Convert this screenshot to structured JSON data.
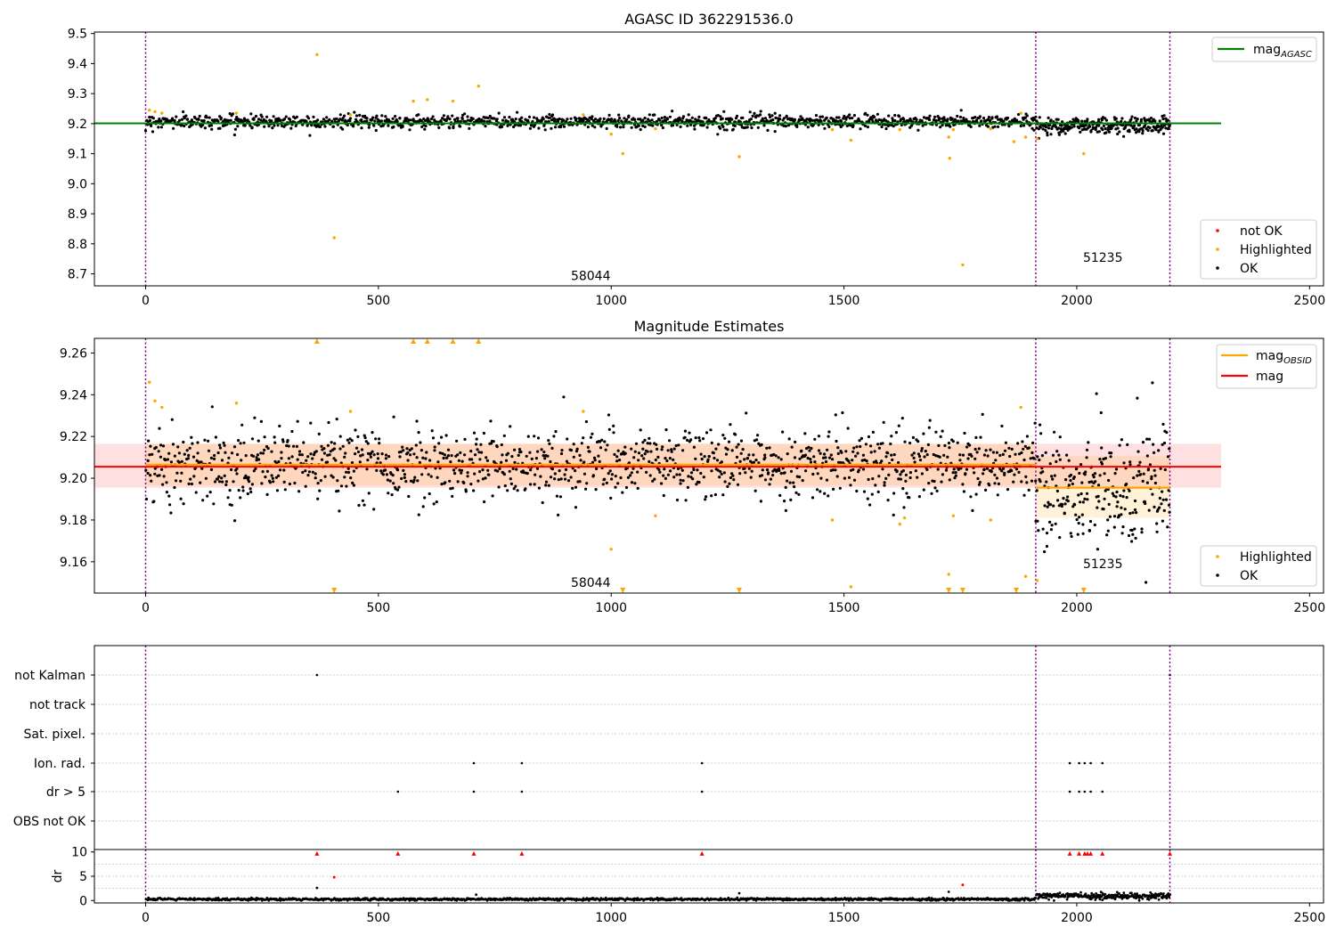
{
  "colors": {
    "ok": "#000000",
    "highlighted": "#ffa500",
    "not_ok": "#ff0000",
    "mag_agasc": "#008000",
    "mag_obsid": "#ffa500",
    "mag": "#ff0000",
    "obsid_boundary": "#800080"
  },
  "chart_data": [
    {
      "type": "scatter",
      "title": "AGASC ID 362291536.0",
      "xlim": [
        -110,
        2530
      ],
      "ylim": [
        8.66,
        9.505
      ],
      "xticks": [
        "0",
        "500",
        "1000",
        "1500",
        "2000",
        "2500"
      ],
      "yticks": [
        "8.7",
        "8.8",
        "8.9",
        "9.0",
        "9.1",
        "9.2",
        "9.3",
        "9.4",
        "9.5"
      ],
      "legend_lines": [
        {
          "label_main": "mag",
          "label_sub": "AGASC",
          "color": "#008000"
        }
      ],
      "legend_points": [
        {
          "label": "not OK",
          "color": "#ff0000"
        },
        {
          "label": "Highlighted",
          "color": "#ffa500"
        },
        {
          "label": "OK",
          "color": "#000000"
        }
      ],
      "obsid_boundaries": [
        0,
        1912,
        2200
      ],
      "annotations": [
        {
          "text": "58044",
          "x": 956,
          "y": 8.68
        },
        {
          "text": "51235",
          "x": 2056,
          "y": 8.74
        }
      ],
      "mag_agasc": 9.201,
      "ok_segments": [
        {
          "x0": 0,
          "x1": 1912,
          "mean": 9.207,
          "spread": 0.011
        },
        {
          "x0": 1912,
          "x1": 2200,
          "mean": 9.195,
          "spread": 0.014
        }
      ],
      "highlighted": [
        [
          8,
          9.245
        ],
        [
          20,
          9.24
        ],
        [
          35,
          9.235
        ],
        [
          195,
          9.235
        ],
        [
          368,
          9.43
        ],
        [
          405,
          8.82
        ],
        [
          440,
          9.23
        ],
        [
          575,
          9.275
        ],
        [
          605,
          9.28
        ],
        [
          660,
          9.275
        ],
        [
          715,
          9.325
        ],
        [
          940,
          9.23
        ],
        [
          1000,
          9.165
        ],
        [
          1025,
          9.1
        ],
        [
          1095,
          9.183
        ],
        [
          1275,
          9.09
        ],
        [
          1475,
          9.18
        ],
        [
          1515,
          9.145
        ],
        [
          1620,
          9.18
        ],
        [
          1725,
          9.155
        ],
        [
          1727,
          9.085
        ],
        [
          1735,
          9.18
        ],
        [
          1755,
          8.73
        ],
        [
          1815,
          9.183
        ],
        [
          1865,
          9.14
        ],
        [
          1880,
          9.235
        ],
        [
          1890,
          9.155
        ],
        [
          1915,
          9.15
        ],
        [
          2015,
          9.1
        ]
      ]
    },
    {
      "type": "scatter",
      "title": "Magnitude Estimates",
      "xlim": [
        -110,
        2530
      ],
      "ylim": [
        9.145,
        9.267
      ],
      "xticks": [
        "0",
        "500",
        "1000",
        "1500",
        "2000",
        "2500"
      ],
      "yticks": [
        "9.16",
        "9.18",
        "9.20",
        "9.22",
        "9.24",
        "9.26"
      ],
      "legend_lines": [
        {
          "label_main": "mag",
          "label_sub": "OBSID",
          "color": "#ffa500"
        },
        {
          "label_main": "mag",
          "label_sub": "",
          "color": "#ff0000"
        }
      ],
      "legend_points": [
        {
          "label": "Highlighted",
          "color": "#ffa500"
        },
        {
          "label": "OK",
          "color": "#000000"
        }
      ],
      "obsid_boundaries": [
        0,
        1912,
        2200
      ],
      "annotations": [
        {
          "text": "58044",
          "x": 956,
          "y": 9.148
        },
        {
          "text": "51235",
          "x": 2056,
          "y": 9.157
        }
      ],
      "mag": {
        "value": 9.2055,
        "band": [
          9.1955,
          9.2165
        ],
        "x0": 0,
        "x1": 2310
      },
      "mag_obsid": [
        {
          "x0": 0,
          "x1": 1912,
          "value": 9.2065,
          "band": [
            9.1965,
            9.2165
          ]
        },
        {
          "x0": 1912,
          "x1": 2200,
          "value": 9.1955,
          "band": [
            9.181,
            9.2105
          ]
        }
      ],
      "ok_segments": [
        {
          "x0": 0,
          "x1": 1912,
          "mean": 9.207,
          "spread": 0.0085
        },
        {
          "x0": 1912,
          "x1": 2200,
          "mean": 9.195,
          "spread": 0.014
        }
      ],
      "highlighted": [
        [
          8,
          9.246
        ],
        [
          20,
          9.237
        ],
        [
          35,
          9.234
        ],
        [
          195,
          9.236
        ],
        [
          440,
          9.232
        ],
        [
          940,
          9.232
        ],
        [
          1000,
          9.166
        ],
        [
          1095,
          9.182
        ],
        [
          1475,
          9.18
        ],
        [
          1515,
          9.148
        ],
        [
          1620,
          9.178
        ],
        [
          1630,
          9.181
        ],
        [
          1725,
          9.154
        ],
        [
          1735,
          9.182
        ],
        [
          1815,
          9.18
        ],
        [
          1880,
          9.234
        ],
        [
          1890,
          9.153
        ],
        [
          1915,
          9.151
        ]
      ],
      "highlighted_above": [
        368,
        575,
        605,
        660,
        715
      ],
      "highlighted_below": [
        405,
        1025,
        1275,
        1725,
        1755,
        1870,
        2015
      ]
    },
    {
      "type": "scatter",
      "title": "",
      "xlim": [
        -110,
        2530
      ],
      "xticks": [
        "0",
        "500",
        "1000",
        "1500",
        "2000",
        "2500"
      ],
      "flag_rows": [
        "not Kalman",
        "not track",
        "Sat. pixel.",
        "Ion. rad.",
        "dr > 5",
        "OBS not OK"
      ],
      "obsid_boundaries": [
        0,
        1912,
        2200
      ],
      "flags": {
        "not Kalman": [
          368,
          2200
        ],
        "not track": [],
        "Sat. pixel.": [],
        "Ion. rad.": [
          705,
          808,
          1195,
          1985,
          2005,
          2017,
          2030,
          2055
        ],
        "dr > 5": [
          542,
          705,
          808,
          1195,
          1985,
          2005,
          2017,
          2030,
          2055
        ],
        "OBS not OK": []
      }
    },
    {
      "type": "scatter",
      "title": "",
      "ylabel": "dr",
      "xlim": [
        -110,
        2530
      ],
      "ylim": [
        -0.5,
        10.5
      ],
      "xticks": [
        "0",
        "500",
        "1000",
        "1500",
        "2000",
        "2500"
      ],
      "yticks": [
        "0",
        "5",
        "10"
      ],
      "obsid_boundaries": [
        0,
        1912,
        2200
      ],
      "clipped_at_10": [
        368,
        542,
        705,
        808,
        1195,
        1985,
        2005,
        2017,
        2023,
        2030,
        2055,
        2200
      ],
      "red_points": [
        [
          405,
          4.8
        ],
        [
          1755,
          3.2
        ]
      ],
      "outliers": [
        [
          368,
          2.6
        ],
        [
          1275,
          1.5
        ],
        [
          1725,
          1.8
        ],
        [
          710,
          1.2
        ]
      ],
      "dr_segments": [
        {
          "x0": 0,
          "x1": 1912,
          "mean": 0.25,
          "spread": 0.12
        },
        {
          "x0": 1912,
          "x1": 2200,
          "mean": 0.95,
          "spread": 0.35
        }
      ]
    }
  ]
}
